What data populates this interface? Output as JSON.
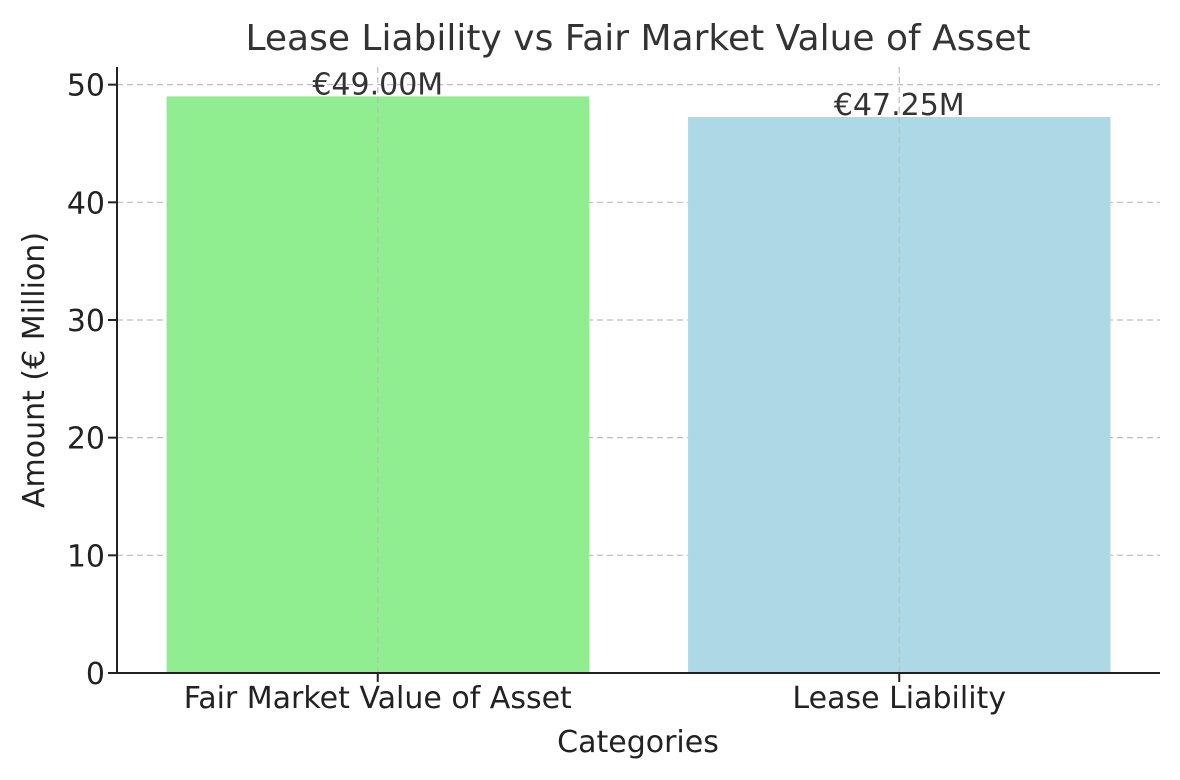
{
  "chart_data": {
    "type": "bar",
    "title": "Lease Liability vs Fair Market Value of Asset",
    "xlabel": "Categories",
    "ylabel": "Amount (€ Million)",
    "categories": [
      "Fair Market Value of Asset",
      "Lease Liability"
    ],
    "values": [
      49.0,
      47.25
    ],
    "data_labels": [
      "€49.00M",
      "€47.25M"
    ],
    "colors": [
      "#90ee90",
      "#add8e6"
    ],
    "ylim": [
      0,
      51.5
    ],
    "yticks": [
      0,
      10,
      20,
      30,
      40,
      50
    ],
    "grid": true,
    "legend": "none"
  }
}
